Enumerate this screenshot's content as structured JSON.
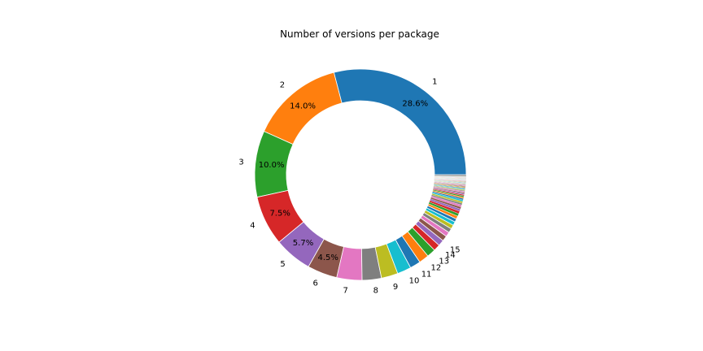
{
  "chart_data": {
    "type": "pie",
    "style": "donut",
    "title": "Number of versions per package",
    "start_angle_deg": 0,
    "direction": "counterclockwise",
    "slices": [
      {
        "label": "1",
        "value": 28.6,
        "pct_label": "28.6%",
        "color": "#1f77b4"
      },
      {
        "label": "2",
        "value": 14.0,
        "pct_label": "14.0%",
        "color": "#ff7f0e"
      },
      {
        "label": "3",
        "value": 10.0,
        "pct_label": "10.0%",
        "color": "#2ca02c"
      },
      {
        "label": "4",
        "value": 7.5,
        "pct_label": "7.5%",
        "color": "#d62728"
      },
      {
        "label": "5",
        "value": 5.7,
        "pct_label": "5.7%",
        "color": "#9467bd"
      },
      {
        "label": "6",
        "value": 4.5,
        "pct_label": "4.5%",
        "color": "#8c564b"
      },
      {
        "label": "7",
        "value": 3.8,
        "pct_label": "",
        "color": "#e377c2"
      },
      {
        "label": "8",
        "value": 2.9,
        "pct_label": "",
        "color": "#7f7f7f"
      },
      {
        "label": "9",
        "value": 2.5,
        "pct_label": "",
        "color": "#bcbd22"
      },
      {
        "label": "10",
        "value": 2.1,
        "pct_label": "",
        "color": "#17becf"
      },
      {
        "label": "11",
        "value": 1.6,
        "pct_label": "",
        "color": "#1f77b4"
      },
      {
        "label": "12",
        "value": 1.5,
        "pct_label": "",
        "color": "#ff7f0e"
      },
      {
        "label": "13",
        "value": 1.3,
        "pct_label": "",
        "color": "#2ca02c"
      },
      {
        "label": "14",
        "value": 1.0,
        "pct_label": "",
        "color": "#d62728"
      },
      {
        "label": "15",
        "value": 0.9,
        "pct_label": "",
        "color": "#9467bd"
      },
      {
        "label": "",
        "value": 0.8,
        "pct_label": "",
        "color": "#8c564b"
      },
      {
        "label": "",
        "value": 0.7,
        "pct_label": "",
        "color": "#e377c2"
      },
      {
        "label": "",
        "value": 0.65,
        "pct_label": "",
        "color": "#7f7f7f"
      },
      {
        "label": "",
        "value": 0.6,
        "pct_label": "",
        "color": "#bcbd22"
      },
      {
        "label": "",
        "value": 0.55,
        "pct_label": "",
        "color": "#17becf"
      },
      {
        "label": "",
        "value": 0.5,
        "pct_label": "",
        "color": "#1f77b4"
      },
      {
        "label": "",
        "value": 0.45,
        "pct_label": "",
        "color": "#ff7f0e"
      },
      {
        "label": "",
        "value": 0.4,
        "pct_label": "",
        "color": "#2ca02c"
      },
      {
        "label": "",
        "value": 0.38,
        "pct_label": "",
        "color": "#d62728"
      },
      {
        "label": "",
        "value": 0.35,
        "pct_label": "",
        "color": "#9467bd"
      },
      {
        "label": "",
        "value": 0.32,
        "pct_label": "",
        "color": "#8c564b"
      },
      {
        "label": "",
        "value": 0.3,
        "pct_label": "",
        "color": "#e377c2"
      },
      {
        "label": "",
        "value": 0.28,
        "pct_label": "",
        "color": "#7f7f7f"
      },
      {
        "label": "",
        "value": 0.26,
        "pct_label": "",
        "color": "#bcbd22"
      },
      {
        "label": "",
        "value": 0.24,
        "pct_label": "",
        "color": "#17becf"
      },
      {
        "label": "",
        "value": 0.22,
        "pct_label": "",
        "color": "#1f77b4"
      },
      {
        "label": "",
        "value": 0.2,
        "pct_label": "",
        "color": "#ff7f0e"
      },
      {
        "label": "",
        "value": 0.2,
        "pct_label": "",
        "color": "#2ca02c"
      },
      {
        "label": "",
        "value": 0.18,
        "pct_label": "",
        "color": "#d62728"
      },
      {
        "label": "",
        "value": 0.17,
        "pct_label": "",
        "color": "#9467bd"
      },
      {
        "label": "",
        "value": 0.16,
        "pct_label": "",
        "color": "#8c564b"
      },
      {
        "label": "",
        "value": 0.15,
        "pct_label": "",
        "color": "#e377c2"
      },
      {
        "label": "",
        "value": 0.14,
        "pct_label": "",
        "color": "#7f7f7f"
      },
      {
        "label": "",
        "value": 0.13,
        "pct_label": "",
        "color": "#bcbd22"
      },
      {
        "label": "",
        "value": 0.12,
        "pct_label": "",
        "color": "#17becf"
      },
      {
        "label": "",
        "value": 0.12,
        "pct_label": "",
        "color": "#1f77b4"
      },
      {
        "label": "",
        "value": 0.11,
        "pct_label": "",
        "color": "#ff7f0e"
      },
      {
        "label": "",
        "value": 0.1,
        "pct_label": "",
        "color": "#2ca02c"
      },
      {
        "label": "",
        "value": 0.1,
        "pct_label": "",
        "color": "#d62728"
      },
      {
        "label": "",
        "value": 0.09,
        "pct_label": "",
        "color": "#9467bd"
      },
      {
        "label": "",
        "value": 0.09,
        "pct_label": "",
        "color": "#8c564b"
      },
      {
        "label": "",
        "value": 0.08,
        "pct_label": "",
        "color": "#e377c2"
      },
      {
        "label": "",
        "value": 0.08,
        "pct_label": "",
        "color": "#7f7f7f"
      },
      {
        "label": "",
        "value": 0.07,
        "pct_label": "",
        "color": "#bcbd22"
      },
      {
        "label": "",
        "value": 0.07,
        "pct_label": "",
        "color": "#17becf"
      },
      {
        "label": "",
        "value": 0.07,
        "pct_label": "",
        "color": "#1f77b4"
      },
      {
        "label": "",
        "value": 0.06,
        "pct_label": "",
        "color": "#ff7f0e"
      },
      {
        "label": "",
        "value": 0.06,
        "pct_label": "",
        "color": "#2ca02c"
      },
      {
        "label": "",
        "value": 0.06,
        "pct_label": "",
        "color": "#d62728"
      },
      {
        "label": "",
        "value": 0.05,
        "pct_label": "",
        "color": "#9467bd"
      },
      {
        "label": "",
        "value": 0.05,
        "pct_label": "",
        "color": "#8c564b"
      },
      {
        "label": "",
        "value": 0.05,
        "pct_label": "",
        "color": "#e377c2"
      },
      {
        "label": "",
        "value": 0.05,
        "pct_label": "",
        "color": "#7f7f7f"
      },
      {
        "label": "",
        "value": 0.04,
        "pct_label": "",
        "color": "#bcbd22"
      },
      {
        "label": "",
        "value": 0.04,
        "pct_label": "",
        "color": "#17becf"
      },
      {
        "label": "",
        "value": 0.04,
        "pct_label": "",
        "color": "#1f77b4"
      },
      {
        "label": "",
        "value": 0.04,
        "pct_label": "",
        "color": "#ff7f0e"
      },
      {
        "label": "",
        "value": 0.04,
        "pct_label": "",
        "color": "#2ca02c"
      },
      {
        "label": "",
        "value": 0.04,
        "pct_label": "",
        "color": "#d62728"
      },
      {
        "label": "",
        "value": 0.04,
        "pct_label": "",
        "color": "#9467bd"
      },
      {
        "label": "",
        "value": 0.04,
        "pct_label": "",
        "color": "#8c564b"
      },
      {
        "label": "",
        "value": 0.04,
        "pct_label": "",
        "color": "#e377c2"
      },
      {
        "label": "",
        "value": 0.04,
        "pct_label": "",
        "color": "#7f7f7f"
      },
      {
        "label": "",
        "value": 0.04,
        "pct_label": "",
        "color": "#bcbd22"
      },
      {
        "label": "",
        "value": 0.04,
        "pct_label": "",
        "color": "#17becf"
      },
      {
        "label": "",
        "value": 0.28,
        "pct_label": "",
        "color": "#aaaaaa"
      }
    ]
  }
}
